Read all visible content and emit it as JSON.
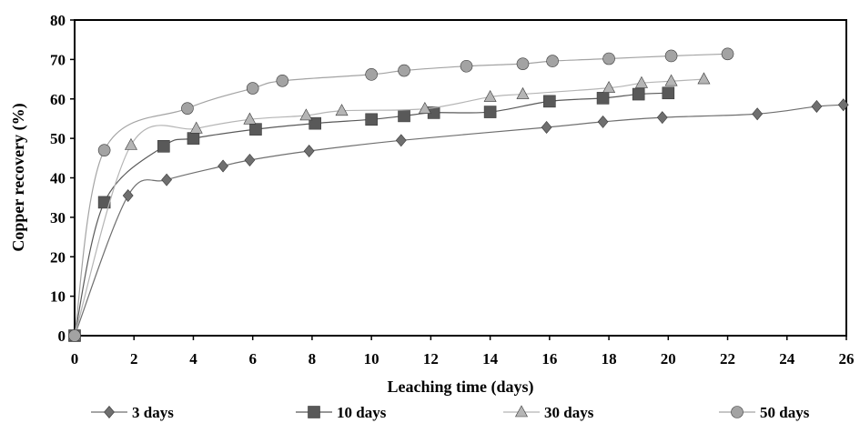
{
  "chart_data": {
    "type": "line",
    "xlabel": "Leaching time (days)",
    "ylabel": "Copper recovery (%)",
    "xlim": [
      0,
      26
    ],
    "ylim": [
      0,
      80
    ],
    "xticks": [
      0,
      2,
      4,
      6,
      8,
      10,
      12,
      14,
      16,
      18,
      20,
      22,
      24,
      26
    ],
    "yticks": [
      0,
      10,
      20,
      30,
      40,
      50,
      60,
      70,
      80
    ],
    "grid": false,
    "legend_position": "bottom",
    "series": [
      {
        "name": "3 days",
        "marker": "diamond",
        "color": "#6f6f6f",
        "x": [
          0,
          1.8,
          3.1,
          5.0,
          5.9,
          7.9,
          11.0,
          15.9,
          17.8,
          19.8,
          23.0,
          25.0,
          25.9
        ],
        "y": [
          0,
          35.5,
          39.5,
          43.0,
          44.5,
          46.8,
          49.5,
          52.8,
          54.2,
          55.3,
          56.2,
          58.1,
          58.5
        ]
      },
      {
        "name": "10 days",
        "marker": "square",
        "color": "#595959",
        "x": [
          0,
          1.0,
          3.0,
          4.0,
          6.1,
          8.1,
          10.0,
          11.1,
          12.1,
          14.0,
          16.0,
          17.8,
          19.0,
          20.0
        ],
        "y": [
          0,
          33.8,
          48.0,
          50.0,
          52.3,
          53.8,
          54.8,
          55.7,
          56.5,
          56.7,
          59.4,
          60.2,
          61.2,
          61.5
        ]
      },
      {
        "name": "30 days",
        "marker": "triangle",
        "color": "#b5b5b5",
        "x": [
          0,
          1.9,
          4.1,
          5.9,
          7.8,
          9.0,
          11.8,
          14.0,
          15.1,
          18.0,
          19.1,
          20.1,
          21.2
        ],
        "y": [
          0,
          48.3,
          52.5,
          54.8,
          55.8,
          57.0,
          57.5,
          60.5,
          61.2,
          62.8,
          64.0,
          64.5,
          65.0
        ]
      },
      {
        "name": "50 days",
        "marker": "circle",
        "color": "#a3a3a3",
        "x": [
          0,
          1.0,
          3.8,
          6.0,
          7.0,
          10.0,
          11.1,
          13.2,
          15.1,
          16.1,
          18.0,
          20.1,
          22.0
        ],
        "y": [
          0,
          47.0,
          57.6,
          62.7,
          64.6,
          66.2,
          67.2,
          68.3,
          68.9,
          69.6,
          70.2,
          70.9,
          71.4
        ]
      }
    ]
  }
}
